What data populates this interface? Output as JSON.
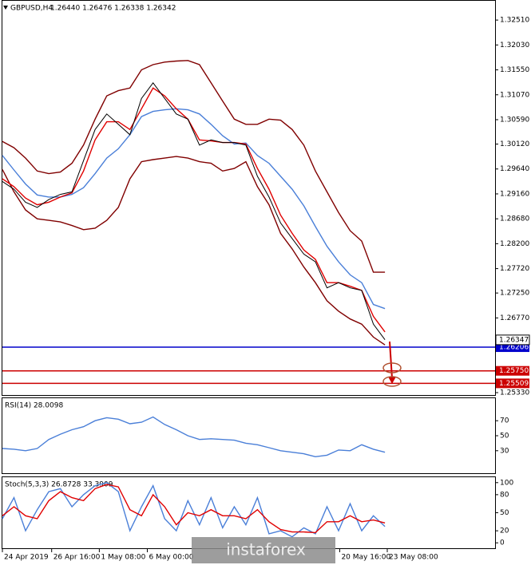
{
  "watermark": "instaforex",
  "chart_data": [
    {
      "type": "line",
      "title": "GBPUSD,H4",
      "subtitle": "1.26440 1.26476 1.26338 1.26342",
      "x": [
        0,
        1,
        2,
        3,
        4,
        5,
        6,
        7,
        8,
        9,
        10,
        11,
        12,
        13,
        14,
        15,
        16,
        17,
        18,
        19,
        20,
        21,
        22,
        23,
        24,
        25,
        26,
        27,
        28,
        29,
        30,
        31,
        32,
        33
      ],
      "xlim": [
        0,
        42.5
      ],
      "ylim": [
        1.25284,
        1.32881
      ],
      "yticks": [
        {
          "value": 1.3251,
          "label": "1.32510"
        },
        {
          "value": 1.3203,
          "label": "1.32030"
        },
        {
          "value": 1.3155,
          "label": "1.31550"
        },
        {
          "value": 1.3107,
          "label": "1.31070"
        },
        {
          "value": 1.3059,
          "label": "1.30590"
        },
        {
          "value": 1.3012,
          "label": "1.30120"
        },
        {
          "value": 1.2964,
          "label": "1.29640"
        },
        {
          "value": 1.2916,
          "label": "1.29160"
        },
        {
          "value": 1.2868,
          "label": "1.28680"
        },
        {
          "value": 1.282,
          "label": "1.28200"
        },
        {
          "value": 1.2772,
          "label": "1.27720"
        },
        {
          "value": 1.2725,
          "label": "1.27250"
        },
        {
          "value": 1.2677,
          "label": "1.26770"
        },
        {
          "value": 1.2533,
          "label": "1.25330"
        }
      ],
      "last_price": 1.26347,
      "hlines": [
        {
          "value": 1.26206,
          "label": "1.26206",
          "color": "#0000cc"
        },
        {
          "value": 1.2575,
          "label": "1.25750",
          "color": "#cc0000"
        },
        {
          "value": 1.25509,
          "label": "1.25509",
          "color": "#cc0000"
        }
      ],
      "series": [
        {
          "name": "Upper band",
          "color": "#800000",
          "values": [
            1.3017,
            1.3005,
            1.2985,
            1.296,
            1.2955,
            1.2958,
            1.2975,
            1.301,
            1.306,
            1.3105,
            1.3115,
            1.312,
            1.3155,
            1.3165,
            1.317,
            1.3172,
            1.3173,
            1.3165,
            1.313,
            1.3095,
            1.306,
            1.305,
            1.305,
            1.306,
            1.3058,
            1.304,
            1.301,
            1.296,
            1.292,
            1.288,
            1.2845,
            1.2825,
            1.2765,
            1.2765
          ]
        },
        {
          "name": "Lower band",
          "color": "#800000",
          "values": [
            1.2963,
            1.292,
            1.2885,
            1.2868,
            1.2865,
            1.2862,
            1.2855,
            1.2847,
            1.285,
            1.2865,
            1.289,
            1.2945,
            1.2978,
            1.2982,
            1.2985,
            1.2988,
            1.2985,
            1.2978,
            1.2975,
            1.296,
            1.2965,
            1.2978,
            1.293,
            1.2895,
            1.284,
            1.281,
            1.2775,
            1.2745,
            1.271,
            1.269,
            1.2675,
            1.2665,
            1.264,
            1.2625
          ]
        },
        {
          "name": "Slow MA",
          "color": "#4a7fd8",
          "values": [
            1.299,
            1.2962,
            1.2935,
            1.2914,
            1.291,
            1.291,
            1.2915,
            1.2928,
            1.2955,
            1.2985,
            1.3003,
            1.303,
            1.3065,
            1.3075,
            1.3078,
            1.308,
            1.3078,
            1.307,
            1.305,
            1.3028,
            1.3012,
            1.3014,
            1.299,
            1.2975,
            1.295,
            1.2925,
            1.2893,
            1.2853,
            1.2815,
            1.2785,
            1.276,
            1.2745,
            1.2703,
            1.2695
          ]
        },
        {
          "name": "Fast MA",
          "color": "#e00000",
          "values": [
            1.2945,
            1.293,
            1.2908,
            1.2895,
            1.29,
            1.291,
            1.2918,
            1.296,
            1.302,
            1.3055,
            1.3055,
            1.304,
            1.308,
            1.312,
            1.3105,
            1.308,
            1.306,
            1.302,
            1.3018,
            1.3015,
            1.3015,
            1.3012,
            1.2965,
            1.2925,
            1.2875,
            1.284,
            1.2808,
            1.279,
            1.2745,
            1.2745,
            1.2738,
            1.273,
            1.268,
            1.265
          ]
        },
        {
          "name": "Close",
          "color": "#000000",
          "values": [
            1.294,
            1.2925,
            1.29,
            1.289,
            1.2905,
            1.2915,
            1.292,
            1.298,
            1.304,
            1.307,
            1.305,
            1.303,
            1.31,
            1.313,
            1.31,
            1.307,
            1.306,
            1.301,
            1.302,
            1.3015,
            1.3015,
            1.301,
            1.295,
            1.291,
            1.286,
            1.283,
            1.28,
            1.2785,
            1.2735,
            1.2745,
            1.2735,
            1.273,
            1.2665,
            1.2635
          ]
        }
      ]
    },
    {
      "type": "line",
      "title": "RSI(14) 28.0098",
      "ylim": [
        0,
        100
      ],
      "yticks": [
        70,
        50,
        30
      ],
      "series": [
        {
          "name": "RSI",
          "color": "#4a7fd8",
          "values": [
            33,
            32,
            30,
            33,
            45,
            52,
            58,
            62,
            70,
            74,
            72,
            66,
            68,
            75,
            65,
            58,
            50,
            45,
            46,
            45,
            44,
            40,
            38,
            34,
            30,
            28,
            26,
            22,
            24,
            31,
            30,
            38,
            32,
            28
          ]
        }
      ]
    },
    {
      "type": "line",
      "title": "Stoch(5,3,3) 26.8728 33.3909",
      "ylim": [
        -9,
        109
      ],
      "yticks": [
        100,
        80,
        50,
        20,
        0
      ],
      "xticks": [
        {
          "value": 0,
          "label": "24 Apr 2019"
        },
        {
          "value": 4.25,
          "label": "26 Apr 16:00"
        },
        {
          "value": 8.36,
          "label": "1 May 08:00"
        },
        {
          "value": 12.5,
          "label": "6 May 00:00"
        },
        {
          "value": 29.1,
          "label": "20 May 16:00"
        },
        {
          "value": 33.2,
          "label": "23 May 08:00"
        }
      ],
      "series": [
        {
          "name": "Main",
          "color": "#4a7fd8",
          "values": [
            40,
            75,
            20,
            55,
            85,
            90,
            60,
            80,
            95,
            100,
            85,
            20,
            60,
            95,
            40,
            20,
            70,
            30,
            75,
            25,
            60,
            30,
            75,
            15,
            20,
            10,
            25,
            15,
            60,
            20,
            65,
            20,
            45,
            27
          ]
        },
        {
          "name": "Signal",
          "color": "#e00000",
          "values": [
            45,
            60,
            45,
            40,
            70,
            85,
            75,
            70,
            90,
            97,
            93,
            55,
            45,
            80,
            60,
            30,
            50,
            45,
            55,
            45,
            45,
            40,
            55,
            35,
            22,
            18,
            18,
            17,
            35,
            35,
            45,
            35,
            38,
            33
          ]
        }
      ]
    }
  ]
}
